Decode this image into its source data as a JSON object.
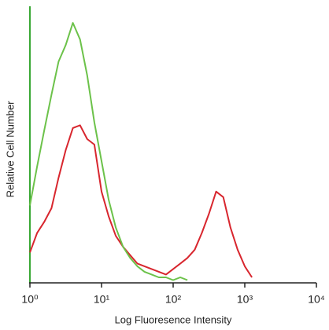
{
  "chart_data": {
    "type": "line",
    "xlabel": "Log Fluoresence Intensity",
    "ylabel": "Relative Cell Number",
    "log_x": true,
    "x": [
      1,
      1.26,
      1.58,
      2.0,
      2.51,
      3.16,
      3.98,
      5.01,
      6.31,
      7.94,
      10,
      12.6,
      15.8,
      20,
      25.1,
      31.6,
      39.8,
      50.1,
      63.1,
      79.4,
      100,
      126,
      158,
      200,
      251,
      316,
      398,
      501,
      631,
      794,
      1000,
      1259,
      1585
    ],
    "series": [
      {
        "color": "#d8262e",
        "values": [
          11,
          18,
          22,
          27,
          38,
          48,
          56,
          57,
          52,
          50,
          33,
          24,
          17,
          13,
          10,
          7,
          6,
          5,
          4,
          3,
          5,
          7,
          9,
          12,
          18,
          25,
          33,
          31,
          20,
          12,
          6,
          2,
          null
        ]
      },
      {
        "color": "#6cc24a",
        "values": [
          28,
          42,
          55,
          68,
          80,
          86,
          94,
          88,
          75,
          58,
          44,
          30,
          20,
          13,
          9,
          6,
          4,
          3,
          2,
          2,
          1,
          2,
          1,
          null,
          null,
          null,
          null,
          null,
          null,
          null,
          null,
          null,
          null
        ]
      }
    ],
    "xlim": [
      1,
      10000
    ],
    "xticks": [
      {
        "value": 1,
        "label": "10⁰"
      },
      {
        "value": 10,
        "label": "10¹"
      },
      {
        "value": 100,
        "label": "10²"
      },
      {
        "value": 1000,
        "label": "10³"
      },
      {
        "value": 10000,
        "label": "10⁴"
      }
    ],
    "ylim": [
      0,
      100
    ],
    "axis_color": "#3aa835"
  }
}
